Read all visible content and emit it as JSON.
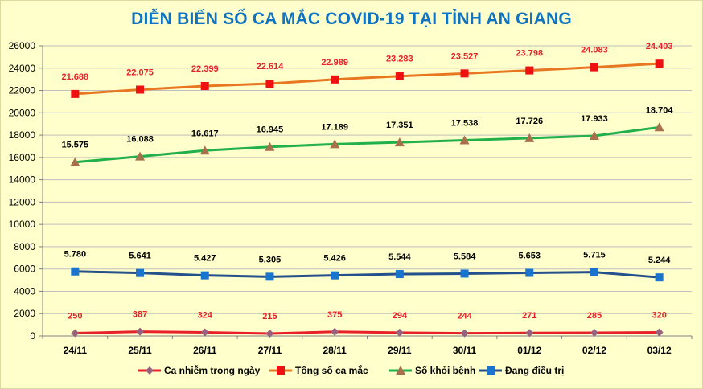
{
  "chart_data": {
    "type": "line",
    "title": "DIỄN BIẾN SỐ CA MẮC COVID-19 TẠI TỈNH AN GIANG",
    "x": [
      "24/11",
      "25/11",
      "26/11",
      "27/11",
      "28/11",
      "29/11",
      "30/11",
      "01/12",
      "02/12",
      "03/12"
    ],
    "ylim": [
      0,
      26000
    ],
    "yticks": [
      0,
      2000,
      4000,
      6000,
      8000,
      10000,
      12000,
      14000,
      16000,
      18000,
      20000,
      22000,
      24000,
      26000
    ],
    "grid": true,
    "legend_position": "bottom",
    "series": [
      {
        "name": "Ca nhiễm trong ngày",
        "values": [
          250,
          387,
          324,
          215,
          375,
          294,
          244,
          271,
          285,
          320
        ],
        "labels": [
          "250",
          "387",
          "324",
          "215",
          "375",
          "294",
          "244",
          "271",
          "285",
          "320"
        ],
        "color": "#e8202a",
        "marker": "diamond",
        "marker_color": "#9a6080",
        "label_color": "#e8202a"
      },
      {
        "name": "Tổng số ca mắc",
        "values": [
          21688,
          22075,
          22399,
          22614,
          22989,
          23283,
          23527,
          23798,
          24083,
          24403
        ],
        "labels": [
          "21.688",
          "22.075",
          "22.399",
          "22.614",
          "22.989",
          "23.283",
          "23.527",
          "23.798",
          "24.083",
          "24.403"
        ],
        "color": "#e87722",
        "marker": "square",
        "marker_color": "#ee1111",
        "label_color": "#e8202a"
      },
      {
        "name": "Số khỏi bệnh",
        "values": [
          15575,
          16088,
          16617,
          16945,
          17189,
          17351,
          17538,
          17726,
          17933,
          18704
        ],
        "labels": [
          "15.575",
          "16.088",
          "16.617",
          "16.945",
          "17.189",
          "17.351",
          "17.538",
          "17.726",
          "17.933",
          "18.704"
        ],
        "color": "#22b04b",
        "marker": "triangle",
        "marker_color": "#a8704a",
        "label_color": "#000000"
      },
      {
        "name": "Đang điều trị",
        "values": [
          5780,
          5641,
          5427,
          5305,
          5426,
          5544,
          5584,
          5653,
          5715,
          5244
        ],
        "labels": [
          "5.780",
          "5.641",
          "5.427",
          "5.305",
          "5.426",
          "5.544",
          "5.584",
          "5.653",
          "5.715",
          "5.244"
        ],
        "color": "#24508c",
        "marker": "square",
        "marker_color": "#1874cd",
        "label_color": "#000000"
      }
    ]
  }
}
